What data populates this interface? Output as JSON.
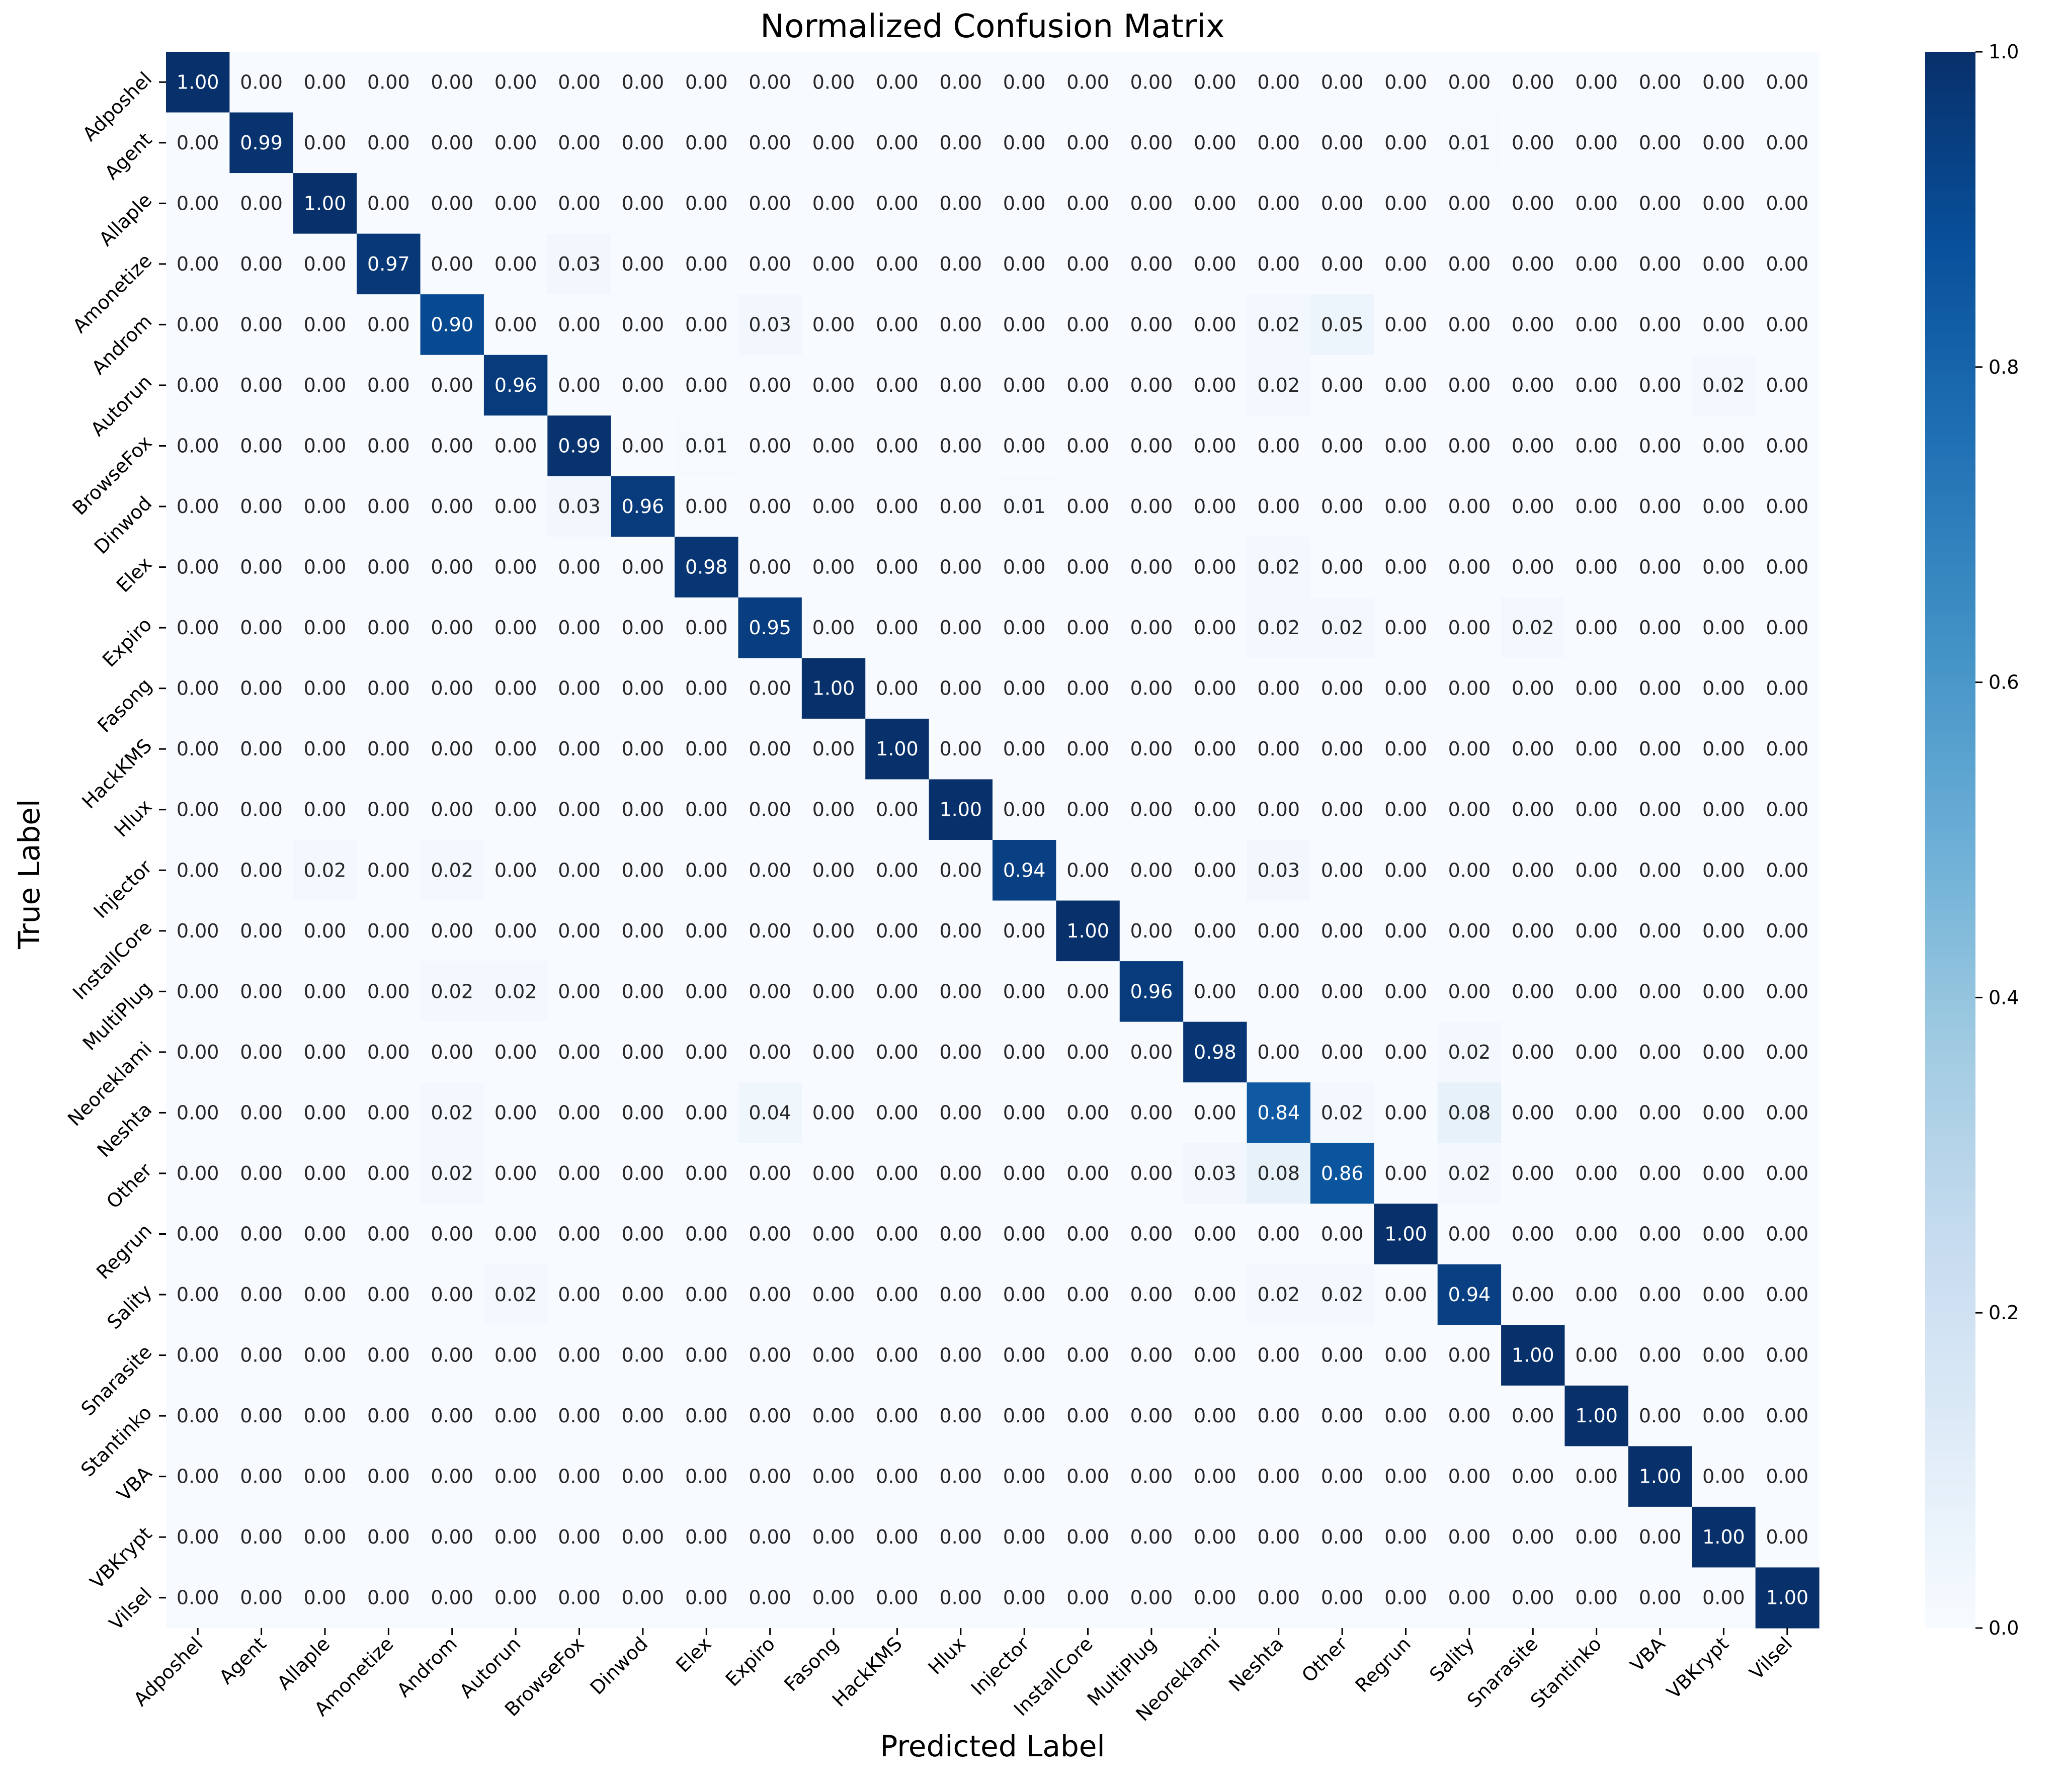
{
  "chart_data": {
    "type": "heatmap",
    "title": "Normalized Confusion Matrix",
    "xlabel": "Predicted Label",
    "ylabel": "True Label",
    "labels": [
      "Adposhel",
      "Agent",
      "Allaple",
      "Amonetize",
      "Androm",
      "Autorun",
      "BrowseFox",
      "Dinwod",
      "Elex",
      "Expiro",
      "Fasong",
      "HackKMS",
      "Hlux",
      "Injector",
      "InstallCore",
      "MultiPlug",
      "Neoreklami",
      "Neshta",
      "Other",
      "Regrun",
      "Sality",
      "Snarasite",
      "Stantinko",
      "VBA",
      "VBKrypt",
      "Vilsel"
    ],
    "matrix": [
      [
        1.0,
        0.0,
        0.0,
        0.0,
        0.0,
        0.0,
        0.0,
        0.0,
        0.0,
        0.0,
        0.0,
        0.0,
        0.0,
        0.0,
        0.0,
        0.0,
        0.0,
        0.0,
        0.0,
        0.0,
        0.0,
        0.0,
        0.0,
        0.0,
        0.0,
        0.0
      ],
      [
        0.0,
        0.99,
        0.0,
        0.0,
        0.0,
        0.0,
        0.0,
        0.0,
        0.0,
        0.0,
        0.0,
        0.0,
        0.0,
        0.0,
        0.0,
        0.0,
        0.0,
        0.0,
        0.0,
        0.0,
        0.01,
        0.0,
        0.0,
        0.0,
        0.0,
        0.0
      ],
      [
        0.0,
        0.0,
        1.0,
        0.0,
        0.0,
        0.0,
        0.0,
        0.0,
        0.0,
        0.0,
        0.0,
        0.0,
        0.0,
        0.0,
        0.0,
        0.0,
        0.0,
        0.0,
        0.0,
        0.0,
        0.0,
        0.0,
        0.0,
        0.0,
        0.0,
        0.0
      ],
      [
        0.0,
        0.0,
        0.0,
        0.97,
        0.0,
        0.0,
        0.03,
        0.0,
        0.0,
        0.0,
        0.0,
        0.0,
        0.0,
        0.0,
        0.0,
        0.0,
        0.0,
        0.0,
        0.0,
        0.0,
        0.0,
        0.0,
        0.0,
        0.0,
        0.0,
        0.0
      ],
      [
        0.0,
        0.0,
        0.0,
        0.0,
        0.9,
        0.0,
        0.0,
        0.0,
        0.0,
        0.03,
        0.0,
        0.0,
        0.0,
        0.0,
        0.0,
        0.0,
        0.0,
        0.02,
        0.05,
        0.0,
        0.0,
        0.0,
        0.0,
        0.0,
        0.0,
        0.0
      ],
      [
        0.0,
        0.0,
        0.0,
        0.0,
        0.0,
        0.96,
        0.0,
        0.0,
        0.0,
        0.0,
        0.0,
        0.0,
        0.0,
        0.0,
        0.0,
        0.0,
        0.0,
        0.02,
        0.0,
        0.0,
        0.0,
        0.0,
        0.0,
        0.0,
        0.02,
        0.0
      ],
      [
        0.0,
        0.0,
        0.0,
        0.0,
        0.0,
        0.0,
        0.99,
        0.0,
        0.01,
        0.0,
        0.0,
        0.0,
        0.0,
        0.0,
        0.0,
        0.0,
        0.0,
        0.0,
        0.0,
        0.0,
        0.0,
        0.0,
        0.0,
        0.0,
        0.0,
        0.0
      ],
      [
        0.0,
        0.0,
        0.0,
        0.0,
        0.0,
        0.0,
        0.03,
        0.96,
        0.0,
        0.0,
        0.0,
        0.0,
        0.0,
        0.01,
        0.0,
        0.0,
        0.0,
        0.0,
        0.0,
        0.0,
        0.0,
        0.0,
        0.0,
        0.0,
        0.0,
        0.0
      ],
      [
        0.0,
        0.0,
        0.0,
        0.0,
        0.0,
        0.0,
        0.0,
        0.0,
        0.98,
        0.0,
        0.0,
        0.0,
        0.0,
        0.0,
        0.0,
        0.0,
        0.0,
        0.02,
        0.0,
        0.0,
        0.0,
        0.0,
        0.0,
        0.0,
        0.0,
        0.0
      ],
      [
        0.0,
        0.0,
        0.0,
        0.0,
        0.0,
        0.0,
        0.0,
        0.0,
        0.0,
        0.95,
        0.0,
        0.0,
        0.0,
        0.0,
        0.0,
        0.0,
        0.0,
        0.02,
        0.02,
        0.0,
        0.0,
        0.02,
        0.0,
        0.0,
        0.0,
        0.0
      ],
      [
        0.0,
        0.0,
        0.0,
        0.0,
        0.0,
        0.0,
        0.0,
        0.0,
        0.0,
        0.0,
        1.0,
        0.0,
        0.0,
        0.0,
        0.0,
        0.0,
        0.0,
        0.0,
        0.0,
        0.0,
        0.0,
        0.0,
        0.0,
        0.0,
        0.0,
        0.0
      ],
      [
        0.0,
        0.0,
        0.0,
        0.0,
        0.0,
        0.0,
        0.0,
        0.0,
        0.0,
        0.0,
        0.0,
        1.0,
        0.0,
        0.0,
        0.0,
        0.0,
        0.0,
        0.0,
        0.0,
        0.0,
        0.0,
        0.0,
        0.0,
        0.0,
        0.0,
        0.0
      ],
      [
        0.0,
        0.0,
        0.0,
        0.0,
        0.0,
        0.0,
        0.0,
        0.0,
        0.0,
        0.0,
        0.0,
        0.0,
        1.0,
        0.0,
        0.0,
        0.0,
        0.0,
        0.0,
        0.0,
        0.0,
        0.0,
        0.0,
        0.0,
        0.0,
        0.0,
        0.0
      ],
      [
        0.0,
        0.0,
        0.02,
        0.0,
        0.02,
        0.0,
        0.0,
        0.0,
        0.0,
        0.0,
        0.0,
        0.0,
        0.0,
        0.94,
        0.0,
        0.0,
        0.0,
        0.03,
        0.0,
        0.0,
        0.0,
        0.0,
        0.0,
        0.0,
        0.0,
        0.0
      ],
      [
        0.0,
        0.0,
        0.0,
        0.0,
        0.0,
        0.0,
        0.0,
        0.0,
        0.0,
        0.0,
        0.0,
        0.0,
        0.0,
        0.0,
        1.0,
        0.0,
        0.0,
        0.0,
        0.0,
        0.0,
        0.0,
        0.0,
        0.0,
        0.0,
        0.0,
        0.0
      ],
      [
        0.0,
        0.0,
        0.0,
        0.0,
        0.02,
        0.02,
        0.0,
        0.0,
        0.0,
        0.0,
        0.0,
        0.0,
        0.0,
        0.0,
        0.0,
        0.96,
        0.0,
        0.0,
        0.0,
        0.0,
        0.0,
        0.0,
        0.0,
        0.0,
        0.0,
        0.0
      ],
      [
        0.0,
        0.0,
        0.0,
        0.0,
        0.0,
        0.0,
        0.0,
        0.0,
        0.0,
        0.0,
        0.0,
        0.0,
        0.0,
        0.0,
        0.0,
        0.0,
        0.98,
        0.0,
        0.0,
        0.0,
        0.02,
        0.0,
        0.0,
        0.0,
        0.0,
        0.0
      ],
      [
        0.0,
        0.0,
        0.0,
        0.0,
        0.02,
        0.0,
        0.0,
        0.0,
        0.0,
        0.04,
        0.0,
        0.0,
        0.0,
        0.0,
        0.0,
        0.0,
        0.0,
        0.84,
        0.02,
        0.0,
        0.08,
        0.0,
        0.0,
        0.0,
        0.0,
        0.0
      ],
      [
        0.0,
        0.0,
        0.0,
        0.0,
        0.02,
        0.0,
        0.0,
        0.0,
        0.0,
        0.0,
        0.0,
        0.0,
        0.0,
        0.0,
        0.0,
        0.0,
        0.03,
        0.08,
        0.86,
        0.0,
        0.02,
        0.0,
        0.0,
        0.0,
        0.0,
        0.0
      ],
      [
        0.0,
        0.0,
        0.0,
        0.0,
        0.0,
        0.0,
        0.0,
        0.0,
        0.0,
        0.0,
        0.0,
        0.0,
        0.0,
        0.0,
        0.0,
        0.0,
        0.0,
        0.0,
        0.0,
        1.0,
        0.0,
        0.0,
        0.0,
        0.0,
        0.0,
        0.0
      ],
      [
        0.0,
        0.0,
        0.0,
        0.0,
        0.0,
        0.02,
        0.0,
        0.0,
        0.0,
        0.0,
        0.0,
        0.0,
        0.0,
        0.0,
        0.0,
        0.0,
        0.0,
        0.02,
        0.02,
        0.0,
        0.94,
        0.0,
        0.0,
        0.0,
        0.0,
        0.0
      ],
      [
        0.0,
        0.0,
        0.0,
        0.0,
        0.0,
        0.0,
        0.0,
        0.0,
        0.0,
        0.0,
        0.0,
        0.0,
        0.0,
        0.0,
        0.0,
        0.0,
        0.0,
        0.0,
        0.0,
        0.0,
        0.0,
        1.0,
        0.0,
        0.0,
        0.0,
        0.0
      ],
      [
        0.0,
        0.0,
        0.0,
        0.0,
        0.0,
        0.0,
        0.0,
        0.0,
        0.0,
        0.0,
        0.0,
        0.0,
        0.0,
        0.0,
        0.0,
        0.0,
        0.0,
        0.0,
        0.0,
        0.0,
        0.0,
        0.0,
        1.0,
        0.0,
        0.0,
        0.0
      ],
      [
        0.0,
        0.0,
        0.0,
        0.0,
        0.0,
        0.0,
        0.0,
        0.0,
        0.0,
        0.0,
        0.0,
        0.0,
        0.0,
        0.0,
        0.0,
        0.0,
        0.0,
        0.0,
        0.0,
        0.0,
        0.0,
        0.0,
        0.0,
        1.0,
        0.0,
        0.0
      ],
      [
        0.0,
        0.0,
        0.0,
        0.0,
        0.0,
        0.0,
        0.0,
        0.0,
        0.0,
        0.0,
        0.0,
        0.0,
        0.0,
        0.0,
        0.0,
        0.0,
        0.0,
        0.0,
        0.0,
        0.0,
        0.0,
        0.0,
        0.0,
        0.0,
        1.0,
        0.0
      ],
      [
        0.0,
        0.0,
        0.0,
        0.0,
        0.0,
        0.0,
        0.0,
        0.0,
        0.0,
        0.0,
        0.0,
        0.0,
        0.0,
        0.0,
        0.0,
        0.0,
        0.0,
        0.0,
        0.0,
        0.0,
        0.0,
        0.0,
        0.0,
        0.0,
        0.0,
        1.0
      ]
    ],
    "value_format": "0.00",
    "colormap": "Blues",
    "color_range": [
      0.0,
      1.0
    ],
    "colorbar_ticks": [
      "0.0",
      "0.2",
      "0.4",
      "0.6",
      "0.8",
      "1.0"
    ],
    "colorbar_placement": "right",
    "grid": false
  }
}
